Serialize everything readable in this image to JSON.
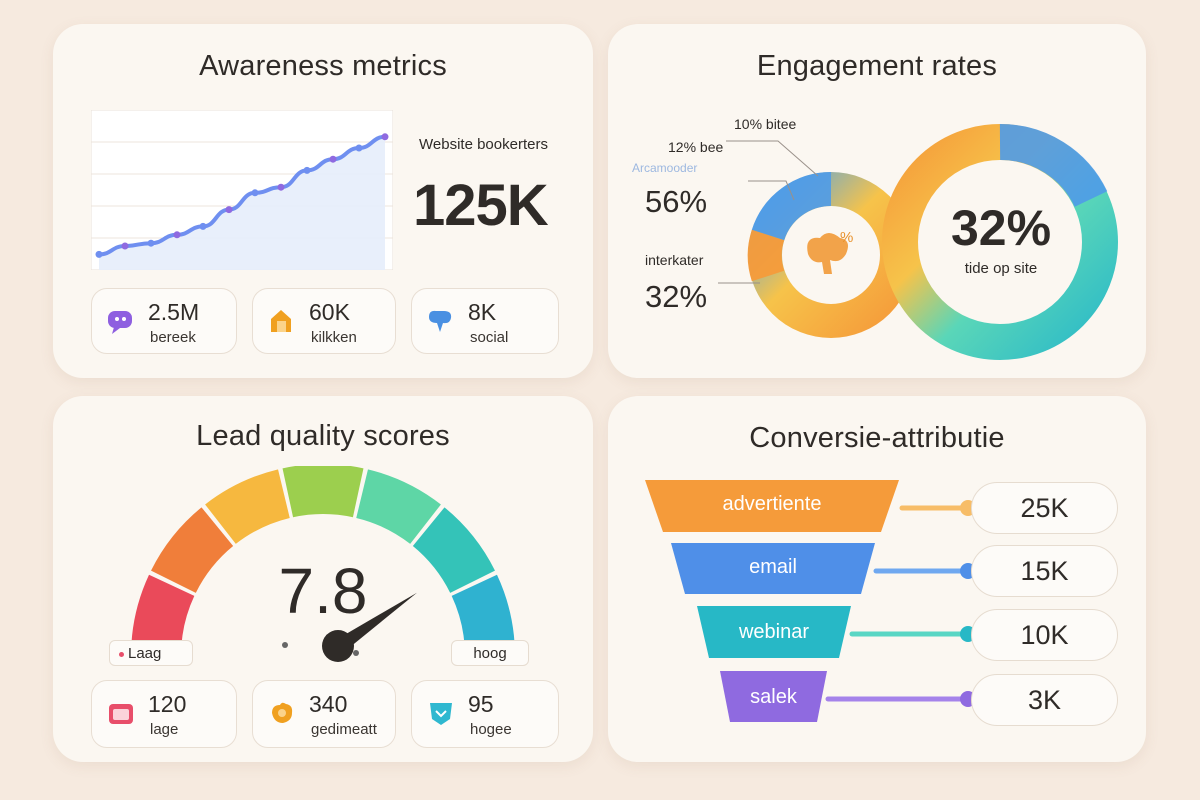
{
  "awareness": {
    "title": "Awareness metrics",
    "metric_label": "Website bookerters",
    "metric_value": "125K",
    "chart_data": {
      "type": "line",
      "x": [
        1,
        2,
        3,
        4,
        5,
        6,
        7,
        8,
        9,
        10,
        11,
        12
      ],
      "values": [
        2,
        5,
        6,
        9,
        12,
        18,
        24,
        26,
        32,
        36,
        40,
        44
      ],
      "ylim": [
        0,
        50
      ],
      "grid": true
    },
    "stats": [
      {
        "value": "2.5M",
        "label": "bereek",
        "icon": "chat-icon",
        "color": "#8e5fe0"
      },
      {
        "value": "60K",
        "label": "kilkken",
        "icon": "cursor-icon",
        "color": "#f0a020"
      },
      {
        "value": "8K",
        "label": "social",
        "icon": "social-icon",
        "color": "#4a90e2"
      }
    ]
  },
  "engagement": {
    "title": "Engagement rates",
    "labels": {
      "top_right": "10% bitee",
      "top_left": "12% bee",
      "faded": "Arcamooder",
      "left_pct": "56%",
      "interaction_label": "interkater",
      "interaction_pct": "32%",
      "center_pct": "32%",
      "center_label": "tide op site",
      "small_center": "%"
    }
  },
  "lead_quality": {
    "title": "Lead quality scores",
    "score": "7.8",
    "score_value": 7.8,
    "low_label": "Laag",
    "high_label": "hoog",
    "stats": [
      {
        "value": "120",
        "label": "lage",
        "icon": "calendar-icon",
        "color": "#e84e6a"
      },
      {
        "value": "340",
        "label": "gedimeatt",
        "icon": "hand-icon",
        "color": "#f0a020"
      },
      {
        "value": "95",
        "label": "hogee",
        "icon": "heart-icon",
        "color": "#2fb8d0"
      }
    ]
  },
  "conversion": {
    "title": "Conversie-attributie",
    "stages": [
      {
        "label": "advertiente",
        "value": "25K",
        "color": "#f59b3a"
      },
      {
        "label": "email",
        "value": "15K",
        "color": "#4f8fe8"
      },
      {
        "label": "webinar",
        "value": "10K",
        "color": "#27b8c6"
      },
      {
        "label": "salek",
        "value": "3K",
        "color": "#8f6ae0"
      }
    ]
  }
}
